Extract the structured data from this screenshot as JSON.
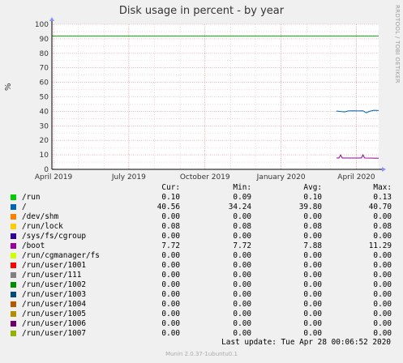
{
  "chart_data": {
    "type": "line",
    "title": "Disk usage in percent - by year",
    "ylabel": "%",
    "watermark": "RRDTOOL / TOBI OETIKER",
    "ylim": [
      0,
      100
    ],
    "yticks": [
      0,
      10,
      20,
      30,
      40,
      50,
      60,
      70,
      80,
      90,
      100
    ],
    "xrange": [
      "2019-03-30",
      "2020-04-28"
    ],
    "xticks": [
      {
        "label": "April 2019",
        "date": "2019-04-01"
      },
      {
        "label": "July 2019",
        "date": "2019-07-01"
      },
      {
        "label": "October 2019",
        "date": "2019-10-01"
      },
      {
        "label": "January 2020",
        "date": "2020-01-01"
      },
      {
        "label": "April 2020",
        "date": "2020-04-01"
      }
    ],
    "warning_level": 92,
    "series": [
      {
        "name": "/",
        "color": "#0066b3",
        "points": [
          [
            "2020-03-08",
            40.2
          ],
          [
            "2020-03-14",
            39.8
          ],
          [
            "2020-03-18",
            39.6
          ],
          [
            "2020-03-22",
            40.3
          ],
          [
            "2020-03-28",
            40.4
          ],
          [
            "2020-04-03",
            40.3
          ],
          [
            "2020-04-09",
            40.4
          ],
          [
            "2020-04-13",
            39.0
          ],
          [
            "2020-04-17",
            40.0
          ],
          [
            "2020-04-22",
            40.7
          ],
          [
            "2020-04-28",
            40.56
          ]
        ]
      },
      {
        "name": "/boot",
        "color": "#990099",
        "points": [
          [
            "2020-03-08",
            7.8
          ],
          [
            "2020-03-11",
            7.8
          ],
          [
            "2020-03-13",
            9.9
          ],
          [
            "2020-03-15",
            7.8
          ],
          [
            "2020-04-07",
            7.8
          ],
          [
            "2020-04-09",
            10.0
          ],
          [
            "2020-04-11",
            7.8
          ],
          [
            "2020-04-28",
            7.72
          ]
        ]
      }
    ]
  },
  "legend": {
    "headers": [
      "Cur:",
      "Min:",
      "Avg:",
      "Max:"
    ],
    "rows": [
      {
        "name": "/run",
        "color": "#00cc00",
        "cur": "0.10",
        "min": "0.09",
        "avg": "0.10",
        "max": "0.13"
      },
      {
        "name": "/",
        "color": "#0066b3",
        "cur": "40.56",
        "min": "34.24",
        "avg": "39.80",
        "max": "40.70"
      },
      {
        "name": "/dev/shm",
        "color": "#ff8000",
        "cur": "0.00",
        "min": "0.00",
        "avg": "0.00",
        "max": "0.00"
      },
      {
        "name": "/run/lock",
        "color": "#ffcc00",
        "cur": "0.08",
        "min": "0.08",
        "avg": "0.08",
        "max": "0.08"
      },
      {
        "name": "/sys/fs/cgroup",
        "color": "#330099",
        "cur": "0.00",
        "min": "0.00",
        "avg": "0.00",
        "max": "0.00"
      },
      {
        "name": "/boot",
        "color": "#990099",
        "cur": "7.72",
        "min": "7.72",
        "avg": "7.88",
        "max": "11.29"
      },
      {
        "name": "/run/cgmanager/fs",
        "color": "#ccff00",
        "cur": "0.00",
        "min": "0.00",
        "avg": "0.00",
        "max": "0.00"
      },
      {
        "name": "/run/user/1001",
        "color": "#ff0000",
        "cur": "0.00",
        "min": "0.00",
        "avg": "0.00",
        "max": "0.00"
      },
      {
        "name": "/run/user/111",
        "color": "#808080",
        "cur": "0.00",
        "min": "0.00",
        "avg": "0.00",
        "max": "0.00"
      },
      {
        "name": "/run/user/1002",
        "color": "#008f00",
        "cur": "0.00",
        "min": "0.00",
        "avg": "0.00",
        "max": "0.00"
      },
      {
        "name": "/run/user/1003",
        "color": "#00487d",
        "cur": "0.00",
        "min": "0.00",
        "avg": "0.00",
        "max": "0.00"
      },
      {
        "name": "/run/user/1004",
        "color": "#b35a00",
        "cur": "0.00",
        "min": "0.00",
        "avg": "0.00",
        "max": "0.00"
      },
      {
        "name": "/run/user/1005",
        "color": "#b38f00",
        "cur": "0.00",
        "min": "0.00",
        "avg": "0.00",
        "max": "0.00"
      },
      {
        "name": "/run/user/1006",
        "color": "#6b006b",
        "cur": "0.00",
        "min": "0.00",
        "avg": "0.00",
        "max": "0.00"
      },
      {
        "name": "/run/user/1007",
        "color": "#8fb300",
        "cur": "0.00",
        "min": "0.00",
        "avg": "0.00",
        "max": "0.00"
      }
    ]
  },
  "footer": {
    "last_update": "Last update: Tue Apr 28 00:06:52 2020",
    "munin": "Munin 2.0.37-1ubuntu0.1"
  }
}
